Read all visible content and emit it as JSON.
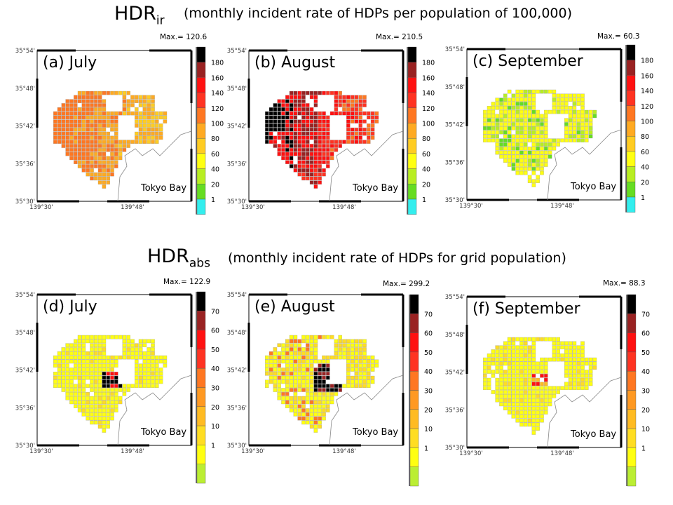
{
  "section1": {
    "main": "HDR",
    "sub": "ir",
    "desc": "(monthly incident rate of HDPs per population of 100,000)"
  },
  "section2": {
    "main": "HDR",
    "sub": "abs",
    "desc": "(monthly incident rate of HDPs for grid population)"
  },
  "colors": {
    "ir": [
      "#33eeee",
      "#66dd22",
      "#b8ee22",
      "#ffff11",
      "#ffcc22",
      "#ffaa22",
      "#ff7722",
      "#ff3322",
      "#ff1111",
      "#992222",
      "#000000"
    ],
    "abs": [
      "#bbee33",
      "#ffff11",
      "#ffdd22",
      "#ffbb22",
      "#ff9922",
      "#ff7722",
      "#ff3322",
      "#ff1111",
      "#992222",
      "#000000"
    ]
  },
  "common": {
    "lat_ticks": [
      "35°54'",
      "35°48'",
      "35°42'",
      "35°36'",
      "35°30'"
    ],
    "lon_ticks": [
      "139°30'",
      "139°48'"
    ],
    "bay_label": "Tokyo Bay"
  },
  "chart_data": [
    {
      "type": "heatmap",
      "panel": "(a)  July",
      "max": "Max.= 120.6",
      "levels": [
        "180",
        "160",
        "140",
        "120",
        "100",
        "80",
        "60",
        "40",
        "20",
        "1"
      ],
      "pattern": "ir_july"
    },
    {
      "type": "heatmap",
      "panel": "(b)  August",
      "max": "Max.= 210.5",
      "levels": [
        "180",
        "160",
        "140",
        "120",
        "100",
        "80",
        "60",
        "40",
        "20",
        "1"
      ],
      "pattern": "ir_august"
    },
    {
      "type": "heatmap",
      "panel": "(c)  September",
      "max": "Max.= 60.3",
      "levels": [
        "180",
        "160",
        "140",
        "120",
        "100",
        "80",
        "60",
        "40",
        "20",
        "1"
      ],
      "pattern": "ir_september"
    },
    {
      "type": "heatmap",
      "panel": "(d)  July",
      "max": "Max.= 122.9",
      "levels": [
        "70",
        "60",
        "50",
        "40",
        "30",
        "20",
        "10",
        "1"
      ],
      "pattern": "abs_july"
    },
    {
      "type": "heatmap",
      "panel": "(e)  August",
      "max": "Max.= 299.2",
      "levels": [
        "70",
        "60",
        "50",
        "40",
        "30",
        "20",
        "10",
        "1"
      ],
      "pattern": "abs_august"
    },
    {
      "type": "heatmap",
      "panel": "(f)  September",
      "max": "Max.= 88.3",
      "levels": [
        "70",
        "60",
        "50",
        "40",
        "30",
        "20",
        "10",
        "1"
      ],
      "pattern": "abs_september"
    }
  ]
}
